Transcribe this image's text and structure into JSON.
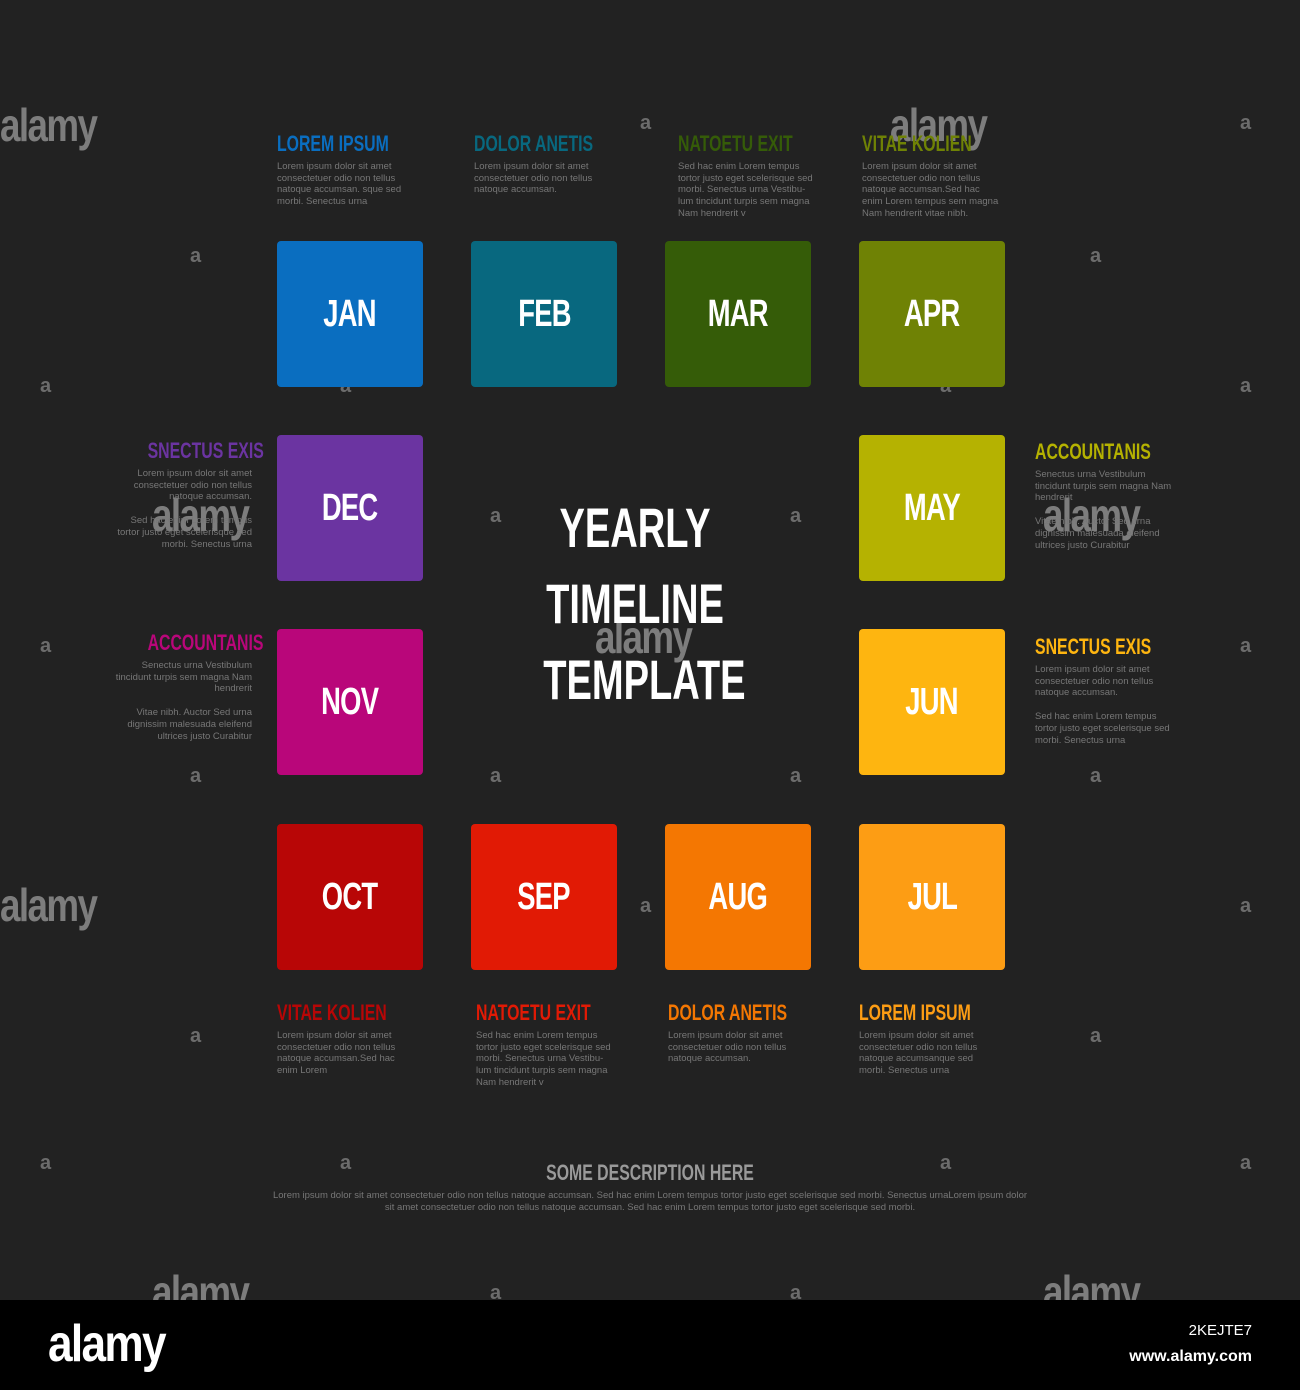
{
  "title": "YEARLY\nTIMELINE\nTEMPLATE",
  "months": [
    {
      "label": "JAN",
      "color": "#0a6ec0"
    },
    {
      "label": "FEB",
      "color": "#08687f"
    },
    {
      "label": "MAR",
      "color": "#355c08"
    },
    {
      "label": "APR",
      "color": "#6f8205"
    },
    {
      "label": "MAY",
      "color": "#b5b201"
    },
    {
      "label": "JUN",
      "color": "#feb510"
    },
    {
      "label": "JUL",
      "color": "#fd9d14"
    },
    {
      "label": "AUG",
      "color": "#f47702"
    },
    {
      "label": "SEP",
      "color": "#e11a05"
    },
    {
      "label": "OCT",
      "color": "#b80606"
    },
    {
      "label": "NOV",
      "color": "#b9067a"
    },
    {
      "label": "DEC",
      "color": "#6b34a1"
    }
  ],
  "notes": [
    {
      "title": "LOREM IPSUM",
      "color": "#0a6ec0",
      "text": "Lorem ipsum dolor sit amet\nconsectetuer odio non tellus\nnatoque accumsan. sque sed\nmorbi. Senectus urna",
      "text2": ""
    },
    {
      "title": "DOLOR ANETIS",
      "color": "#08687f",
      "text": "Lorem ipsum dolor sit amet\nconsectetuer odio non tellus\nnatoque accumsan.",
      "text2": ""
    },
    {
      "title": "NATOETU EXIT",
      "color": "#355c08",
      "text": "Sed hac enim Lorem tempus\ntortor justo eget scelerisque sed\nmorbi. Senectus urna Vestibu-\nlum tincidunt turpis sem magna\nNam hendrerit v",
      "text2": ""
    },
    {
      "title": "VITAE KOLIEN",
      "color": "#6f8205",
      "text": "Lorem ipsum dolor sit amet\nconsectetuer odio non tellus\nnatoque accumsan.Sed hac\nenim Lorem tempus sem magna\nNam hendrerit vitae nibh.",
      "text2": ""
    },
    {
      "title": "ACCOUNTANIS",
      "color": "#b5b201",
      "text": "Senectus urna Vestibulum\ntincidunt turpis sem magna Nam\nhendrerit",
      "text2": "Vitae nibh. Auctor Sed urna\ndignissim malesuada eleifend\nultrices justo Curabitur"
    },
    {
      "title": "SNECTUS EXIS",
      "color": "#feb510",
      "text": "Lorem ipsum dolor sit amet\nconsectetuer odio non tellus\nnatoque accumsan.",
      "text2": "Sed hac enim Lorem tempus\ntortor justo eget scelerisque sed\nmorbi. Senectus urna"
    },
    {
      "title": "LOREM IPSUM",
      "color": "#fd9d14",
      "text": "Lorem ipsum dolor sit amet\nconsectetuer odio non tellus\nnatoque accumsanque sed\nmorbi. Senectus urna",
      "text2": ""
    },
    {
      "title": "DOLOR ANETIS",
      "color": "#f47702",
      "text": "Lorem ipsum dolor sit amet\nconsectetuer odio non tellus\nnatoque accumsan.",
      "text2": ""
    },
    {
      "title": "NATOETU EXIT",
      "color": "#e11a05",
      "text": "Sed hac enim Lorem tempus\ntortor justo eget scelerisque sed\nmorbi. Senectus urna Vestibu-\nlum tincidunt turpis sem magna\nNam hendrerit v",
      "text2": ""
    },
    {
      "title": "VITAE KOLIEN",
      "color": "#b80606",
      "text": "Lorem ipsum dolor sit amet\nconsectetuer odio non tellus\nnatoque accumsan.Sed hac\nenim Lorem",
      "text2": ""
    },
    {
      "title": "ACCOUNTANIS",
      "color": "#b9067a",
      "text": "Senectus urna Vestibulum\ntincidunt turpis sem magna Nam\nhendrerit",
      "text2": "Vitae nibh. Auctor Sed urna\ndignissim malesuada eleifend\nultrices justo Curabitur"
    },
    {
      "title": "SNECTUS EXIS",
      "color": "#6b34a1",
      "text": "Lorem ipsum dolor sit amet\nconsectetuer odio non tellus\nnatoque accumsan.",
      "text2": "Sed hac enim Lorem tempus\ntortor justo eget scelerisque sed\nmorbi. Senectus urna"
    }
  ],
  "description": {
    "title": "SOME DESCRIPTION HERE",
    "text": "Lorem ipsum dolor sit amet consectetuer odio non tellus natoque accumsan. Sed hac enim Lorem tempus tortor justo eget scelerisque sed morbi. Senectus urnaLorem ipsum dolor sit amet consectetuer odio non tellus natoque accumsan. Sed hac enim Lorem tempus tortor justo eget scelerisque sed morbi."
  },
  "watermark": {
    "word": "alamy",
    "mark": "a"
  },
  "footer": {
    "logo": "alamy",
    "image_id": "2KEJTE7",
    "url": "www.alamy.com"
  }
}
